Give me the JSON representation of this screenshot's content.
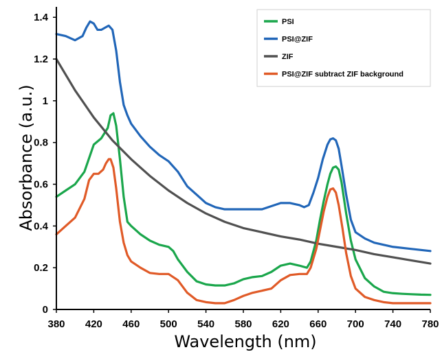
{
  "chart_data": {
    "type": "line",
    "title": "",
    "xlabel": "Wavelength (nm)",
    "ylabel": "Absorbance (a.u.)",
    "xlim": [
      380,
      780
    ],
    "ylim": [
      0,
      1.45
    ],
    "grid": false,
    "legend_position": "top-right",
    "x_ticks": [
      "380",
      "420",
      "460",
      "500",
      "540",
      "580",
      "620",
      "660",
      "700",
      "740",
      "780"
    ],
    "y_ticks": [
      "0",
      "0.2",
      "0.4",
      "0.6",
      "0.8",
      "1",
      "1.2",
      "1.4"
    ],
    "series": [
      {
        "name": "PSI",
        "color": "#1aa64b",
        "x": [
          380,
          390,
          400,
          410,
          420,
          428,
          435,
          438,
          441,
          444,
          448,
          452,
          456,
          460,
          470,
          480,
          490,
          500,
          505,
          510,
          520,
          530,
          540,
          550,
          560,
          570,
          580,
          590,
          600,
          610,
          620,
          630,
          640,
          648,
          652,
          658,
          662,
          666,
          670,
          673,
          676,
          679,
          682,
          685,
          690,
          695,
          700,
          710,
          720,
          730,
          740,
          750,
          760,
          770,
          780
        ],
        "y": [
          0.54,
          0.57,
          0.6,
          0.66,
          0.79,
          0.82,
          0.87,
          0.93,
          0.94,
          0.88,
          0.72,
          0.54,
          0.42,
          0.4,
          0.36,
          0.33,
          0.31,
          0.3,
          0.28,
          0.24,
          0.18,
          0.135,
          0.12,
          0.115,
          0.115,
          0.125,
          0.145,
          0.155,
          0.16,
          0.18,
          0.21,
          0.22,
          0.21,
          0.2,
          0.23,
          0.33,
          0.43,
          0.52,
          0.6,
          0.65,
          0.68,
          0.685,
          0.67,
          0.61,
          0.46,
          0.33,
          0.24,
          0.15,
          0.11,
          0.085,
          0.078,
          0.075,
          0.073,
          0.071,
          0.07
        ]
      },
      {
        "name": "PSI@ZIF",
        "color": "#2166b8",
        "x": [
          380,
          390,
          400,
          408,
          412,
          416,
          420,
          424,
          428,
          432,
          436,
          440,
          444,
          448,
          452,
          456,
          460,
          470,
          480,
          490,
          500,
          510,
          520,
          530,
          540,
          550,
          560,
          580,
          600,
          620,
          630,
          640,
          645,
          650,
          655,
          660,
          665,
          670,
          673,
          676,
          679,
          682,
          685,
          690,
          695,
          700,
          710,
          720,
          740,
          760,
          780
        ],
        "y": [
          1.32,
          1.31,
          1.29,
          1.31,
          1.35,
          1.38,
          1.37,
          1.34,
          1.34,
          1.35,
          1.36,
          1.34,
          1.24,
          1.09,
          0.98,
          0.93,
          0.89,
          0.83,
          0.78,
          0.74,
          0.71,
          0.66,
          0.59,
          0.55,
          0.51,
          0.49,
          0.48,
          0.48,
          0.48,
          0.51,
          0.51,
          0.5,
          0.49,
          0.5,
          0.56,
          0.63,
          0.72,
          0.79,
          0.815,
          0.82,
          0.81,
          0.77,
          0.69,
          0.55,
          0.43,
          0.37,
          0.34,
          0.32,
          0.3,
          0.29,
          0.28
        ]
      },
      {
        "name": "ZIF",
        "color": "#505050",
        "x": [
          380,
          400,
          420,
          440,
          460,
          480,
          500,
          520,
          540,
          560,
          580,
          600,
          620,
          640,
          660,
          680,
          700,
          720,
          740,
          760,
          780
        ],
        "y": [
          1.2,
          1.05,
          0.92,
          0.81,
          0.72,
          0.64,
          0.57,
          0.51,
          0.46,
          0.42,
          0.39,
          0.37,
          0.35,
          0.335,
          0.315,
          0.3,
          0.285,
          0.265,
          0.25,
          0.235,
          0.22
        ]
      },
      {
        "name": "PSI@ZIF subtract ZIF background",
        "color": "#e05a27",
        "x": [
          380,
          390,
          400,
          410,
          415,
          420,
          425,
          430,
          433,
          436,
          438,
          441,
          444,
          448,
          452,
          456,
          460,
          470,
          480,
          490,
          500,
          510,
          520,
          530,
          540,
          550,
          560,
          570,
          580,
          590,
          600,
          610,
          620,
          630,
          640,
          648,
          652,
          658,
          662,
          666,
          670,
          673,
          676,
          679,
          682,
          686,
          690,
          695,
          700,
          710,
          720,
          730,
          740,
          760,
          780
        ],
        "y": [
          0.36,
          0.4,
          0.44,
          0.53,
          0.62,
          0.65,
          0.65,
          0.67,
          0.7,
          0.72,
          0.72,
          0.68,
          0.58,
          0.42,
          0.32,
          0.26,
          0.23,
          0.2,
          0.175,
          0.17,
          0.17,
          0.14,
          0.08,
          0.045,
          0.035,
          0.03,
          0.03,
          0.045,
          0.065,
          0.08,
          0.09,
          0.1,
          0.14,
          0.165,
          0.17,
          0.17,
          0.2,
          0.29,
          0.38,
          0.47,
          0.54,
          0.575,
          0.58,
          0.56,
          0.5,
          0.39,
          0.27,
          0.16,
          0.1,
          0.06,
          0.045,
          0.035,
          0.03,
          0.03,
          0.03
        ]
      }
    ]
  }
}
